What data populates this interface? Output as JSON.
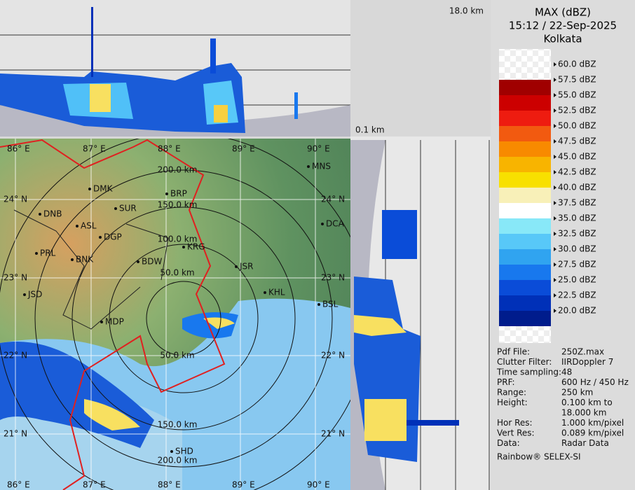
{
  "header": {
    "product": "MAX (dBZ)",
    "time": "15:12 / 22-Sep-2025",
    "site": "Kolkata"
  },
  "section_labels": {
    "top_height": "18.0 km",
    "bottom_height": "0.1 km"
  },
  "legend": {
    "labels": [
      "60.0 dBZ",
      "57.5 dBZ",
      "55.0 dBZ",
      "52.5 dBZ",
      "50.0 dBZ",
      "47.5 dBZ",
      "45.0 dBZ",
      "42.5 dBZ",
      "40.0 dBZ",
      "37.5 dBZ",
      "35.0 dBZ",
      "32.5 dBZ",
      "30.0 dBZ",
      "27.5 dBZ",
      "25.0 dBZ",
      "22.5 dBZ",
      "20.0 dBZ"
    ],
    "band_colors": [
      "#a00000",
      "#cc0000",
      "#ee1c10",
      "#f25a10",
      "#f88a00",
      "#f8b400",
      "#f8e000",
      "#f8f0b8",
      "#ffffff",
      "#88e8f8",
      "#58c8f8",
      "#30a4f0",
      "#1878ee",
      "#0a4cd8",
      "#0030b8",
      "#001c8c"
    ]
  },
  "info": [
    [
      "Pdf File:",
      "250Z.max"
    ],
    [
      "Clutter Filter:",
      "IIRDoppler 7"
    ],
    [
      "Time sampling:",
      "48"
    ],
    [
      "PRF:",
      "600 Hz / 450 Hz"
    ],
    [
      "Range:",
      "250 km"
    ],
    [
      "Height:",
      "0.100 km to",
      "18.000 km"
    ],
    [
      "Hor Res:",
      "1.000 km/pixel"
    ],
    [
      "Vert Res:",
      "0.089 km/pixel"
    ],
    [
      "Data:",
      "Radar Data"
    ]
  ],
  "footer": "Rainbow® SELEX-SI",
  "map": {
    "lon_labels": [
      "86° E",
      "87° E",
      "88° E",
      "89° E",
      "90° E"
    ],
    "lat_labels": [
      "24° N",
      "23° N",
      "22° N",
      "21° N"
    ],
    "range_labels_north": [
      "200.0 km",
      "150.0 km",
      "100.0 km",
      "50.0 km"
    ],
    "range_labels_south": [
      "50.0 km",
      "150.0 km",
      "200.0 km"
    ],
    "cities": [
      "MNS",
      "DMK",
      "BRP",
      "SUR",
      "DNB",
      "ASL",
      "DCA",
      "DGP",
      "KRG",
      "PRL",
      "BNK",
      "BDW",
      "JSR",
      "KHL",
      "JSD",
      "BSL",
      "MDP",
      "SHD"
    ]
  }
}
